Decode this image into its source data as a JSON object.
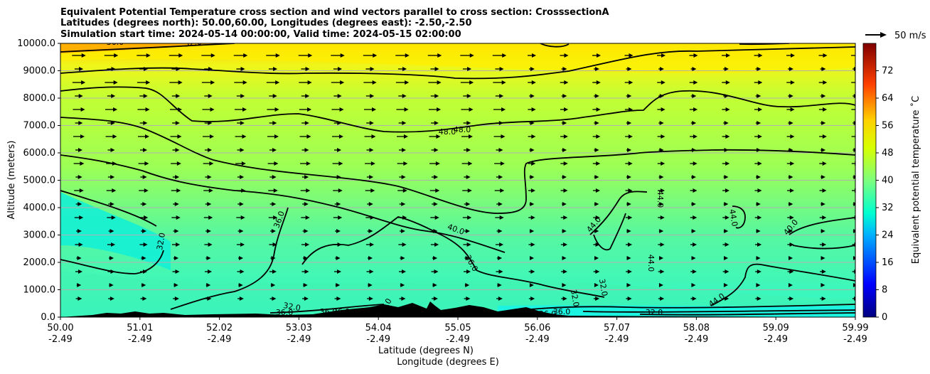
{
  "chart_data": {
    "type": "contour",
    "title_lines": [
      "Equivalent Potential Temperature cross section and wind vectors parallel to cross section: CrosssectionA",
      "Latitudes (degrees north): 50.00,60.00, Longitudes (degrees east): -2.50,-2.50",
      "Simulation start time: 2024-05-14 00:00:00, Valid time: 2024-05-15 02:00:00"
    ],
    "xlabel": "Latitude (degrees N)",
    "xlabel2": "Longitude (degrees E)",
    "ylabel": "Altitude (meters)",
    "xlim": [
      50.0,
      59.99
    ],
    "ylim": [
      0,
      10000
    ],
    "grid_y": true,
    "x_ticks": [
      {
        "lat": "50.00",
        "lon": "-2.49"
      },
      {
        "lat": "51.01",
        "lon": "-2.49"
      },
      {
        "lat": "52.02",
        "lon": "-2.49"
      },
      {
        "lat": "53.03",
        "lon": "-2.49"
      },
      {
        "lat": "54.04",
        "lon": "-2.49"
      },
      {
        "lat": "55.05",
        "lon": "-2.49"
      },
      {
        "lat": "56.06",
        "lon": "-2.49"
      },
      {
        "lat": "57.07",
        "lon": "-2.49"
      },
      {
        "lat": "58.08",
        "lon": "-2.49"
      },
      {
        "lat": "59.09",
        "lon": "-2.49"
      },
      {
        "lat": "59.99",
        "lon": "-2.49"
      }
    ],
    "y_ticks": [
      "0.0",
      "1000.0",
      "2000.0",
      "3000.0",
      "4000.0",
      "5000.0",
      "6000.0",
      "7000.0",
      "8000.0",
      "9000.0",
      "10000.0"
    ],
    "colorbar": {
      "label": "Equivalent potential temperature ˚C",
      "range": [
        0,
        80
      ],
      "ticks": [
        "0",
        "8",
        "16",
        "24",
        "32",
        "40",
        "48",
        "56",
        "64",
        "72"
      ]
    },
    "quiver_key": {
      "label": "50 m/s"
    },
    "contour_labels": [
      "36.0",
      "32.0",
      "52.0",
      "36.0",
      "32.0",
      "48.0",
      "48.0",
      "40.0",
      "36.0",
      "44.0",
      "44.0",
      "44.0",
      "44.0",
      "40.0",
      "44.0",
      "36.0",
      "36.0",
      "36.0",
      "36.0",
      "36.0",
      "36.0",
      "32.0",
      "32.0",
      "32.0"
    ]
  }
}
